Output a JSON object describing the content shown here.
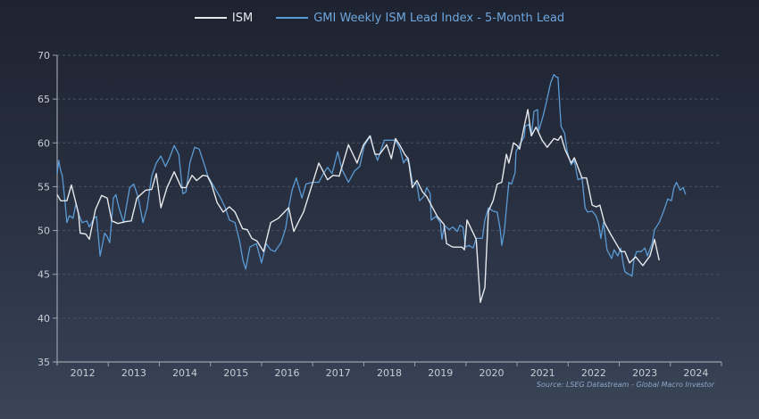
{
  "chart_data": {
    "type": "line",
    "title": "",
    "xlabel": "",
    "ylabel": "",
    "xlim": [
      2012,
      2025
    ],
    "ylim": [
      35,
      70
    ],
    "yticks": [
      35,
      40,
      45,
      50,
      55,
      60,
      65,
      70
    ],
    "xtick_labels": [
      "2012",
      "2013",
      "2014",
      "2015",
      "2016",
      "2017",
      "2018",
      "2019",
      "2020",
      "2021",
      "2022",
      "2023",
      "2024"
    ],
    "grid": "horizontal-dashed",
    "legend_position": "top-center",
    "source": "Source: LSEG Datastream - Global Macro Investor",
    "colors": {
      "ism": "#e6e8ec",
      "gmi": "#5b9bd5",
      "axis": "#9aa0ab",
      "grid": "#4a5366"
    },
    "series": [
      {
        "name": "ISM",
        "key": "ism",
        "points": [
          [
            2012.0,
            54.1
          ],
          [
            2012.07,
            53.4
          ],
          [
            2012.19,
            53.4
          ],
          [
            2012.28,
            55.2
          ],
          [
            2012.42,
            51.9
          ],
          [
            2012.45,
            49.7
          ],
          [
            2012.56,
            49.6
          ],
          [
            2012.63,
            49.0
          ],
          [
            2012.75,
            52.4
          ],
          [
            2012.87,
            54.0
          ],
          [
            2012.98,
            53.7
          ],
          [
            2013.07,
            51.1
          ],
          [
            2013.19,
            50.8
          ],
          [
            2013.33,
            51.0
          ],
          [
            2013.45,
            51.1
          ],
          [
            2013.56,
            53.7
          ],
          [
            2013.73,
            54.6
          ],
          [
            2013.85,
            54.7
          ],
          [
            2013.94,
            56.5
          ],
          [
            2014.03,
            52.6
          ],
          [
            2014.15,
            54.9
          ],
          [
            2014.29,
            56.7
          ],
          [
            2014.43,
            54.9
          ],
          [
            2014.52,
            54.9
          ],
          [
            2014.64,
            56.3
          ],
          [
            2014.73,
            55.7
          ],
          [
            2014.85,
            56.3
          ],
          [
            2014.94,
            56.2
          ],
          [
            2015.02,
            55.3
          ],
          [
            2015.13,
            53.2
          ],
          [
            2015.25,
            52.1
          ],
          [
            2015.37,
            52.7
          ],
          [
            2015.48,
            52.1
          ],
          [
            2015.63,
            50.2
          ],
          [
            2015.72,
            50.1
          ],
          [
            2015.81,
            49.1
          ],
          [
            2015.91,
            48.8
          ],
          [
            2016.04,
            47.6
          ],
          [
            2016.18,
            50.9
          ],
          [
            2016.33,
            51.4
          ],
          [
            2016.53,
            52.6
          ],
          [
            2016.63,
            49.9
          ],
          [
            2016.74,
            51.2
          ],
          [
            2016.82,
            52.1
          ],
          [
            2016.96,
            54.7
          ],
          [
            2017.12,
            57.7
          ],
          [
            2017.29,
            55.8
          ],
          [
            2017.4,
            56.3
          ],
          [
            2017.52,
            56.2
          ],
          [
            2017.7,
            59.8
          ],
          [
            2017.87,
            57.7
          ],
          [
            2017.99,
            59.7
          ],
          [
            2018.12,
            60.8
          ],
          [
            2018.22,
            58.7
          ],
          [
            2018.31,
            58.7
          ],
          [
            2018.45,
            59.8
          ],
          [
            2018.54,
            58.2
          ],
          [
            2018.62,
            60.5
          ],
          [
            2018.71,
            59.7
          ],
          [
            2018.8,
            58.7
          ],
          [
            2018.87,
            58.2
          ],
          [
            2018.95,
            54.9
          ],
          [
            2019.04,
            55.7
          ],
          [
            2019.15,
            54.4
          ],
          [
            2019.23,
            53.9
          ],
          [
            2019.32,
            52.9
          ],
          [
            2019.44,
            51.6
          ],
          [
            2019.57,
            50.7
          ],
          [
            2019.62,
            48.5
          ],
          [
            2019.74,
            48.1
          ],
          [
            2019.92,
            48.1
          ],
          [
            2019.97,
            47.8
          ],
          [
            2020.02,
            51.2
          ],
          [
            2020.2,
            49.0
          ],
          [
            2020.28,
            41.8
          ],
          [
            2020.37,
            43.5
          ],
          [
            2020.44,
            52.2
          ],
          [
            2020.53,
            53.4
          ],
          [
            2020.61,
            55.3
          ],
          [
            2020.7,
            55.5
          ],
          [
            2020.79,
            58.7
          ],
          [
            2020.84,
            57.7
          ],
          [
            2020.93,
            60.0
          ],
          [
            2021.0,
            59.7
          ],
          [
            2021.05,
            59.3
          ],
          [
            2021.14,
            61.9
          ],
          [
            2021.21,
            63.8
          ],
          [
            2021.28,
            60.8
          ],
          [
            2021.37,
            61.8
          ],
          [
            2021.49,
            60.3
          ],
          [
            2021.59,
            59.5
          ],
          [
            2021.72,
            60.5
          ],
          [
            2021.8,
            60.3
          ],
          [
            2021.86,
            60.8
          ],
          [
            2021.94,
            59.2
          ],
          [
            2022.06,
            57.7
          ],
          [
            2022.12,
            58.3
          ],
          [
            2022.27,
            56.0
          ],
          [
            2022.36,
            56.0
          ],
          [
            2022.47,
            52.9
          ],
          [
            2022.55,
            52.7
          ],
          [
            2022.62,
            52.9
          ],
          [
            2022.71,
            50.9
          ],
          [
            2022.82,
            49.7
          ],
          [
            2022.94,
            48.5
          ],
          [
            2023.03,
            47.6
          ],
          [
            2023.11,
            47.6
          ],
          [
            2023.2,
            46.3
          ],
          [
            2023.32,
            47.0
          ],
          [
            2023.46,
            46.0
          ],
          [
            2023.6,
            47.1
          ],
          [
            2023.69,
            49.0
          ],
          [
            2023.78,
            46.6
          ]
        ]
      },
      {
        "name": "GMI Weekly ISM Lead Index - 5-Month Lead",
        "key": "gmi",
        "points": [
          [
            2012.0,
            56.5
          ],
          [
            2012.03,
            58.0
          ],
          [
            2012.07,
            56.8
          ],
          [
            2012.1,
            56.3
          ],
          [
            2012.16,
            52.9
          ],
          [
            2012.19,
            50.9
          ],
          [
            2012.24,
            51.7
          ],
          [
            2012.31,
            51.4
          ],
          [
            2012.37,
            53.1
          ],
          [
            2012.42,
            51.9
          ],
          [
            2012.49,
            50.9
          ],
          [
            2012.58,
            51.1
          ],
          [
            2012.63,
            50.4
          ],
          [
            2012.72,
            51.4
          ],
          [
            2012.77,
            51.6
          ],
          [
            2012.84,
            47.1
          ],
          [
            2012.93,
            49.7
          ],
          [
            2012.98,
            49.3
          ],
          [
            2013.03,
            48.6
          ],
          [
            2013.1,
            53.7
          ],
          [
            2013.15,
            54.1
          ],
          [
            2013.21,
            52.6
          ],
          [
            2013.3,
            50.9
          ],
          [
            2013.42,
            54.9
          ],
          [
            2013.5,
            55.3
          ],
          [
            2013.59,
            53.7
          ],
          [
            2013.68,
            50.9
          ],
          [
            2013.76,
            52.6
          ],
          [
            2013.85,
            56.2
          ],
          [
            2013.94,
            57.7
          ],
          [
            2014.03,
            58.5
          ],
          [
            2014.12,
            57.3
          ],
          [
            2014.2,
            58.3
          ],
          [
            2014.29,
            59.7
          ],
          [
            2014.38,
            58.7
          ],
          [
            2014.46,
            54.2
          ],
          [
            2014.52,
            54.4
          ],
          [
            2014.6,
            57.8
          ],
          [
            2014.69,
            59.5
          ],
          [
            2014.78,
            59.3
          ],
          [
            2014.87,
            57.7
          ],
          [
            2014.95,
            56.2
          ],
          [
            2015.08,
            54.9
          ],
          [
            2015.2,
            53.7
          ],
          [
            2015.29,
            52.6
          ],
          [
            2015.37,
            51.2
          ],
          [
            2015.48,
            50.9
          ],
          [
            2015.57,
            48.8
          ],
          [
            2015.64,
            46.5
          ],
          [
            2015.69,
            45.6
          ],
          [
            2015.77,
            48.1
          ],
          [
            2015.9,
            48.5
          ],
          [
            2016.0,
            46.3
          ],
          [
            2016.09,
            48.5
          ],
          [
            2016.18,
            47.8
          ],
          [
            2016.26,
            47.6
          ],
          [
            2016.38,
            48.6
          ],
          [
            2016.47,
            50.2
          ],
          [
            2016.53,
            52.6
          ],
          [
            2016.6,
            54.7
          ],
          [
            2016.68,
            56.0
          ],
          [
            2016.79,
            53.7
          ],
          [
            2016.87,
            55.3
          ],
          [
            2016.99,
            55.5
          ],
          [
            2017.12,
            55.5
          ],
          [
            2017.21,
            56.5
          ],
          [
            2017.29,
            57.2
          ],
          [
            2017.38,
            56.5
          ],
          [
            2017.49,
            59.0
          ],
          [
            2017.57,
            57.0
          ],
          [
            2017.7,
            55.5
          ],
          [
            2017.82,
            56.8
          ],
          [
            2017.92,
            57.3
          ],
          [
            2018.01,
            59.7
          ],
          [
            2018.13,
            60.8
          ],
          [
            2018.19,
            59.3
          ],
          [
            2018.27,
            58.0
          ],
          [
            2018.4,
            60.3
          ],
          [
            2018.52,
            60.3
          ],
          [
            2018.62,
            60.3
          ],
          [
            2018.71,
            59.3
          ],
          [
            2018.78,
            57.7
          ],
          [
            2018.83,
            58.2
          ],
          [
            2018.89,
            57.7
          ],
          [
            2018.95,
            55.5
          ],
          [
            2019.04,
            55.3
          ],
          [
            2019.09,
            53.4
          ],
          [
            2019.18,
            53.9
          ],
          [
            2019.23,
            54.9
          ],
          [
            2019.3,
            54.2
          ],
          [
            2019.32,
            51.2
          ],
          [
            2019.41,
            51.6
          ],
          [
            2019.5,
            50.9
          ],
          [
            2019.53,
            49.0
          ],
          [
            2019.58,
            50.6
          ],
          [
            2019.67,
            50.1
          ],
          [
            2019.74,
            50.4
          ],
          [
            2019.83,
            49.9
          ],
          [
            2019.88,
            50.6
          ],
          [
            2019.94,
            50.4
          ],
          [
            2019.99,
            48.1
          ],
          [
            2020.06,
            48.3
          ],
          [
            2020.14,
            48.0
          ],
          [
            2020.2,
            49.1
          ],
          [
            2020.32,
            49.1
          ],
          [
            2020.37,
            51.2
          ],
          [
            2020.44,
            52.6
          ],
          [
            2020.53,
            52.2
          ],
          [
            2020.61,
            52.1
          ],
          [
            2020.67,
            50.1
          ],
          [
            2020.7,
            48.3
          ],
          [
            2020.75,
            49.9
          ],
          [
            2020.81,
            53.7
          ],
          [
            2020.84,
            55.5
          ],
          [
            2020.89,
            55.3
          ],
          [
            2020.96,
            56.6
          ],
          [
            2020.98,
            59.0
          ],
          [
            2021.05,
            59.8
          ],
          [
            2021.14,
            60.7
          ],
          [
            2021.16,
            61.9
          ],
          [
            2021.23,
            62.1
          ],
          [
            2021.28,
            60.8
          ],
          [
            2021.33,
            63.6
          ],
          [
            2021.4,
            63.8
          ],
          [
            2021.42,
            61.3
          ],
          [
            2021.51,
            63.1
          ],
          [
            2021.58,
            64.8
          ],
          [
            2021.59,
            65.1
          ],
          [
            2021.66,
            66.9
          ],
          [
            2021.72,
            67.8
          ],
          [
            2021.77,
            67.5
          ],
          [
            2021.8,
            67.5
          ],
          [
            2021.86,
            61.9
          ],
          [
            2021.93,
            61.1
          ],
          [
            2021.98,
            59.0
          ],
          [
            2022.06,
            57.5
          ],
          [
            2022.12,
            58.0
          ],
          [
            2022.19,
            55.8
          ],
          [
            2022.27,
            56.0
          ],
          [
            2022.33,
            52.6
          ],
          [
            2022.38,
            52.1
          ],
          [
            2022.47,
            52.2
          ],
          [
            2022.54,
            51.7
          ],
          [
            2022.59,
            50.9
          ],
          [
            2022.64,
            49.1
          ],
          [
            2022.69,
            50.9
          ],
          [
            2022.76,
            47.8
          ],
          [
            2022.85,
            46.8
          ],
          [
            2022.9,
            47.8
          ],
          [
            2022.97,
            47.1
          ],
          [
            2023.03,
            48.0
          ],
          [
            2023.08,
            46.1
          ],
          [
            2023.11,
            45.3
          ],
          [
            2023.16,
            45.1
          ],
          [
            2023.25,
            44.8
          ],
          [
            2023.29,
            46.8
          ],
          [
            2023.34,
            47.6
          ],
          [
            2023.43,
            47.6
          ],
          [
            2023.5,
            48.0
          ],
          [
            2023.55,
            47.1
          ],
          [
            2023.64,
            48.5
          ],
          [
            2023.69,
            50.1
          ],
          [
            2023.78,
            50.9
          ],
          [
            2023.86,
            52.1
          ],
          [
            2023.95,
            53.6
          ],
          [
            2024.02,
            53.4
          ],
          [
            2024.07,
            54.9
          ],
          [
            2024.12,
            55.5
          ],
          [
            2024.19,
            54.6
          ],
          [
            2024.25,
            54.9
          ],
          [
            2024.3,
            54.1
          ]
        ]
      }
    ]
  }
}
